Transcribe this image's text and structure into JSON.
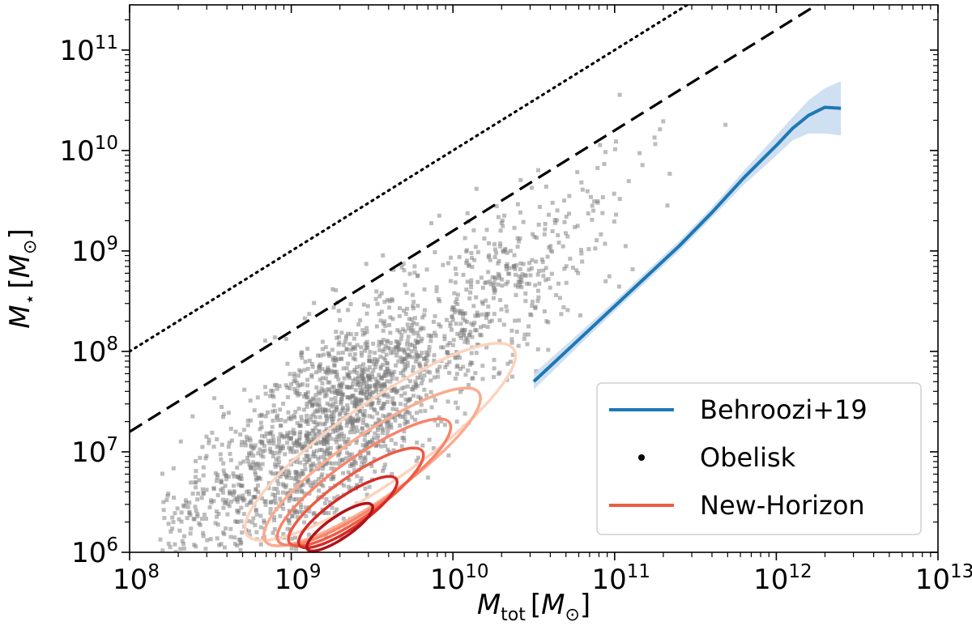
{
  "chart_data": {
    "type": "scatter",
    "xlabel": {
      "main": "M",
      "sub": "tot",
      "unit_open": "[",
      "unit_main": "M",
      "unit_sub": "⊙",
      "unit_close": "]"
    },
    "ylabel": {
      "main": "M",
      "sub": "⋆",
      "unit_open": "[",
      "unit_main": "M",
      "unit_sub": "⊙",
      "unit_close": "]"
    },
    "x_scale": "log",
    "y_scale": "log",
    "xlim_log10": [
      8,
      13
    ],
    "ylim_log10": [
      6,
      11.45
    ],
    "x_ticks": [
      {
        "base": "10",
        "exp": "8",
        "log": 8
      },
      {
        "base": "10",
        "exp": "9",
        "log": 9
      },
      {
        "base": "10",
        "exp": "10",
        "log": 10
      },
      {
        "base": "10",
        "exp": "11",
        "log": 11
      },
      {
        "base": "10",
        "exp": "12",
        "log": 12
      },
      {
        "base": "10",
        "exp": "13",
        "log": 13
      }
    ],
    "y_ticks": [
      {
        "base": "10",
        "exp": "6",
        "log": 6
      },
      {
        "base": "10",
        "exp": "7",
        "log": 7
      },
      {
        "base": "10",
        "exp": "8",
        "log": 8
      },
      {
        "base": "10",
        "exp": "9",
        "log": 9
      },
      {
        "base": "10",
        "exp": "10",
        "log": 10
      },
      {
        "base": "10",
        "exp": "11",
        "log": 11
      }
    ],
    "reference_lines": [
      {
        "name": "dotted-line",
        "style": "dotted",
        "color": "#000000",
        "log_x": [
          8,
          13
        ],
        "log_y": [
          8,
          13
        ]
      },
      {
        "name": "dashed-line",
        "style": "dashed",
        "color": "#000000",
        "log_x": [
          8,
          13
        ],
        "log_y": [
          7.2,
          12.2
        ]
      }
    ],
    "behroozi": {
      "name": "Behroozi+19",
      "color": "#1f77b4",
      "band_color": "#c6dbef",
      "log_x": [
        10.5,
        10.8,
        11.0,
        11.2,
        11.4,
        11.6,
        11.8,
        12.0,
        12.1,
        12.2,
        12.3,
        12.4
      ],
      "log_y": [
        7.7,
        8.15,
        8.45,
        8.75,
        9.05,
        9.38,
        9.73,
        10.05,
        10.22,
        10.35,
        10.43,
        10.42
      ],
      "log_lo": [
        7.62,
        8.09,
        8.4,
        8.7,
        9.0,
        9.33,
        9.66,
        9.95,
        10.1,
        10.17,
        10.17,
        10.15
      ],
      "log_hi": [
        7.78,
        8.21,
        8.5,
        8.8,
        9.1,
        9.43,
        9.8,
        10.15,
        10.33,
        10.5,
        10.62,
        10.69
      ]
    },
    "obelisk": {
      "name": "Obelisk",
      "color": "#000000",
      "n_points": 2200,
      "note": "gray square markers, log M_star ≈ 1.2·(log M_tot − 9) + 7 with scatter"
    },
    "new_horizon": {
      "name": "New-Horizon",
      "color": "#ef5a43",
      "contours": [
        {
          "level": 1,
          "color": "#fcd3bd",
          "center_log": [
            9.55,
            7.1
          ],
          "r_major": 1.25,
          "r_minor": 0.32
        },
        {
          "level": 2,
          "color": "#fbab8f",
          "center_log": [
            9.5,
            6.85
          ],
          "r_major": 1.0,
          "r_minor": 0.26
        },
        {
          "level": 3,
          "color": "#f7856b",
          "center_log": [
            9.45,
            6.7
          ],
          "r_major": 0.8,
          "r_minor": 0.21
        },
        {
          "level": 4,
          "color": "#ef5a43",
          "center_log": [
            9.4,
            6.55
          ],
          "r_major": 0.62,
          "r_minor": 0.17
        },
        {
          "level": 5,
          "color": "#d52a25",
          "center_log": [
            9.35,
            6.4
          ],
          "r_major": 0.45,
          "r_minor": 0.13
        },
        {
          "level": 6,
          "color": "#b11218",
          "center_log": [
            9.3,
            6.25
          ],
          "r_major": 0.3,
          "r_minor": 0.09
        }
      ]
    },
    "legend": {
      "position": "lower-right",
      "entries": [
        {
          "label": "Behroozi+19",
          "kind": "line",
          "color": "#1f77b4"
        },
        {
          "label": "Obelisk",
          "kind": "dot",
          "color": "#000000"
        },
        {
          "label": "New-Horizon",
          "kind": "line",
          "color": "#ef5a43"
        }
      ]
    }
  }
}
